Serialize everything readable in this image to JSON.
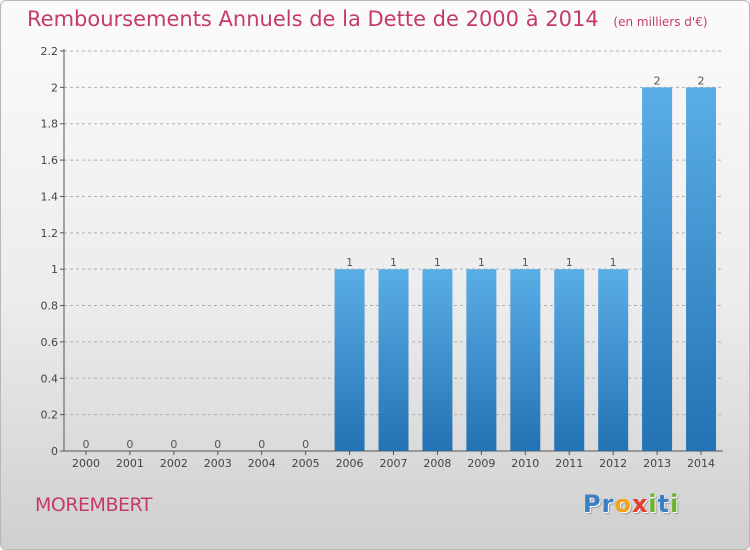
{
  "header": {
    "title": "Remboursements Annuels de la Dette de 2000 à 2014",
    "unit_note": "(en milliers d'€)"
  },
  "footer": {
    "commune": "MOREMBERT",
    "logo_letters": [
      {
        "ch": "P",
        "color": "#3b7fc4"
      },
      {
        "ch": "r",
        "color": "#3b7fc4"
      },
      {
        "ch": "o",
        "color": "#f2a31b"
      },
      {
        "ch": "x",
        "color": "#e43d2f"
      },
      {
        "ch": "i",
        "color": "#6ab42d"
      },
      {
        "ch": "t",
        "color": "#3b7fc4"
      },
      {
        "ch": "i",
        "color": "#6ab42d"
      }
    ]
  },
  "colors": {
    "title": "#c43b6a",
    "bar_top": "#5aaee6",
    "bar_bottom": "#2372b4",
    "axis": "#555555",
    "grid": "#b0b0b0"
  },
  "chart_data": {
    "type": "bar",
    "categories": [
      "2000",
      "2001",
      "2002",
      "2003",
      "2004",
      "2005",
      "2006",
      "2007",
      "2008",
      "2009",
      "2010",
      "2011",
      "2012",
      "2013",
      "2014"
    ],
    "values": [
      0,
      0,
      0,
      0,
      0,
      0,
      1,
      1,
      1,
      1,
      1,
      1,
      1,
      2,
      2
    ],
    "value_labels": [
      "0",
      "0",
      "0",
      "0",
      "0",
      "0",
      "1",
      "1",
      "1",
      "1",
      "1",
      "1",
      "1",
      "2",
      "2"
    ],
    "ylim": [
      0,
      2.2
    ],
    "yticks": [
      0,
      0.2,
      0.4,
      0.6,
      0.8,
      1,
      1.2,
      1.4,
      1.6,
      1.8,
      2,
      2.2
    ],
    "ytick_labels": [
      "0",
      "0.2",
      "0.4",
      "0.6",
      "0.8",
      "1",
      "1.2",
      "1.4",
      "1.6",
      "1.8",
      "2",
      "2.2"
    ],
    "grid": "horizontal dashed",
    "legend": "none"
  }
}
